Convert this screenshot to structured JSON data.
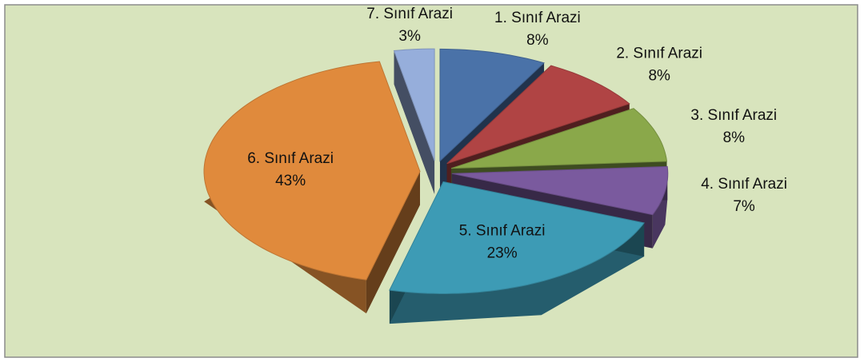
{
  "chart_data": {
    "type": "pie",
    "categories": [
      "1. Sınıf Arazi",
      "2. Sınıf Arazi",
      "3. Sınıf Arazi",
      "4. Sınıf Arazi",
      "5. Sınıf Arazi",
      "6. Sınıf Arazi",
      "7. Sınıf Arazi"
    ],
    "values": [
      8,
      8,
      8,
      7,
      23,
      43,
      3
    ],
    "value_labels": [
      "8%",
      "8%",
      "8%",
      "7%",
      "23%",
      "43%",
      "3%"
    ],
    "colors": [
      "#4a72a8",
      "#b04444",
      "#8aa84a",
      "#7a5a9e",
      "#3d9bb5",
      "#e08a3c",
      "#96aedb"
    ]
  }
}
